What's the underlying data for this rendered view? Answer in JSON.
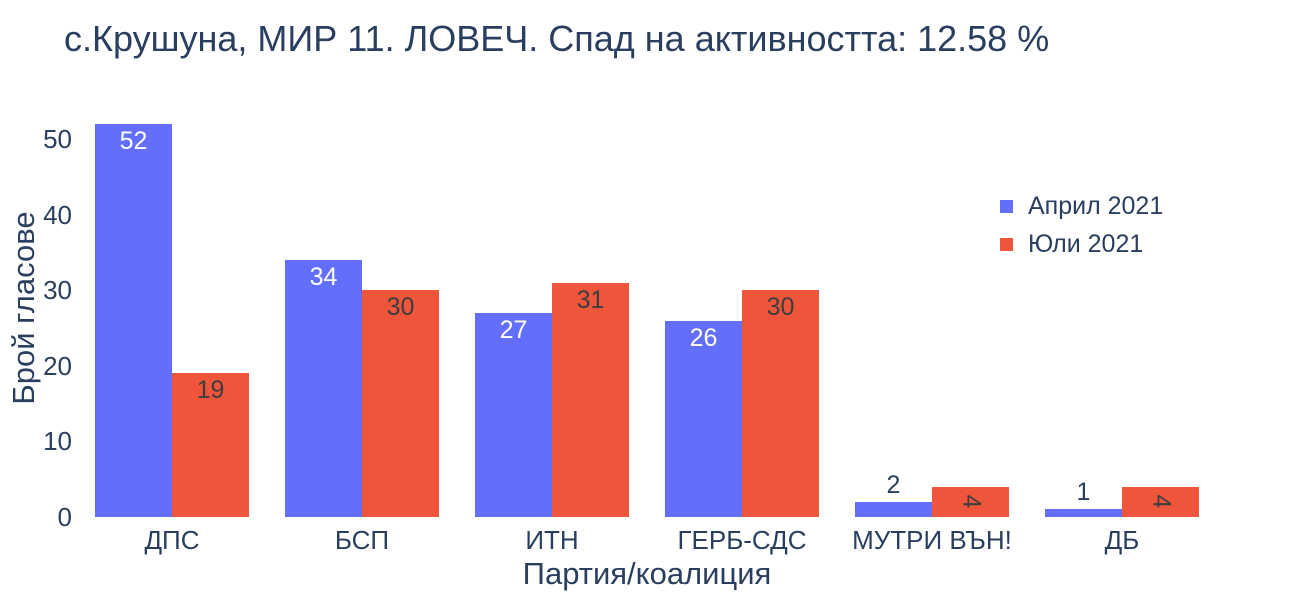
{
  "chart_data": {
    "type": "bar",
    "title": "с.Крушуна, МИР 11. ЛОВЕЧ. Спад на активността: 12.58 %",
    "xlabel": "Партия/коалиция",
    "ylabel": "Брой гласове",
    "categories": [
      "ДПС",
      "БСП",
      "ИТН",
      "ГЕРБ-СДС",
      "МУТРИ ВЪН!",
      "ДБ"
    ],
    "series": [
      {
        "name": "Април 2021",
        "color": "#636efa",
        "inside_text_color": "#ffffff",
        "values": [
          52,
          34,
          27,
          26,
          2,
          1
        ]
      },
      {
        "name": "Юли 2021",
        "color": "#ef553b",
        "inside_text_color": "#3d3d3d",
        "values": [
          19,
          30,
          31,
          30,
          4,
          4
        ]
      }
    ],
    "ylim": [
      0,
      55.2
    ],
    "yticks": [
      0,
      10,
      20,
      30,
      40,
      50
    ],
    "grid": false,
    "legend_position": "right-inside",
    "text_color": "#2a3f5f",
    "background": "#ffffff"
  }
}
